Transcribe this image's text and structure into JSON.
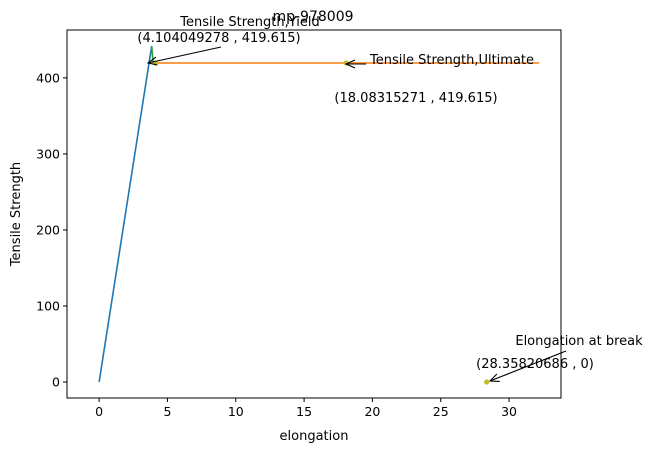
{
  "chart_data": {
    "type": "line",
    "title": "mp-978009",
    "xlabel": "elongation",
    "ylabel": "Tensile Strength",
    "xlim": [
      -2.35,
      33.8
    ],
    "ylim": [
      -21,
      463
    ],
    "x_ticks": [
      0,
      5,
      10,
      15,
      20,
      25,
      30
    ],
    "y_ticks": [
      0,
      100,
      200,
      300,
      400
    ],
    "grid": false,
    "legend": "none",
    "series": [
      {
        "color": "#1f77b4",
        "points": [
          [
            0,
            0
          ],
          [
            3.85,
            442
          ]
        ]
      },
      {
        "color": "#2ca02c",
        "points": [
          [
            3.85,
            442
          ],
          [
            3.95,
            419.6
          ]
        ]
      },
      {
        "color": "#ff7f0e",
        "points": [
          [
            3.95,
            419.615
          ],
          [
            32.2,
            419.615
          ]
        ]
      }
    ],
    "markers": [
      {
        "x": 4.104049278,
        "y": 419.615,
        "color": "#bcbd22"
      },
      {
        "x": 18.08315271,
        "y": 419.615,
        "color": "#bcbd22"
      },
      {
        "x": 28.35820686,
        "y": 0,
        "color": "#bcbd22"
      }
    ],
    "annotations": [
      {
        "label": "Tensile Strength,Yield",
        "value": "(4.104049278 , 419.615)",
        "x": 4.104049278,
        "y": 419.615
      },
      {
        "label": "Tensile Strength,Ultimate",
        "value": "(18.08315271 , 419.615)",
        "x": 18.08315271,
        "y": 419.615
      },
      {
        "label": "Elongation at break",
        "value": "(28.35820686 , 0)",
        "x": 28.35820686,
        "y": 0
      }
    ]
  }
}
